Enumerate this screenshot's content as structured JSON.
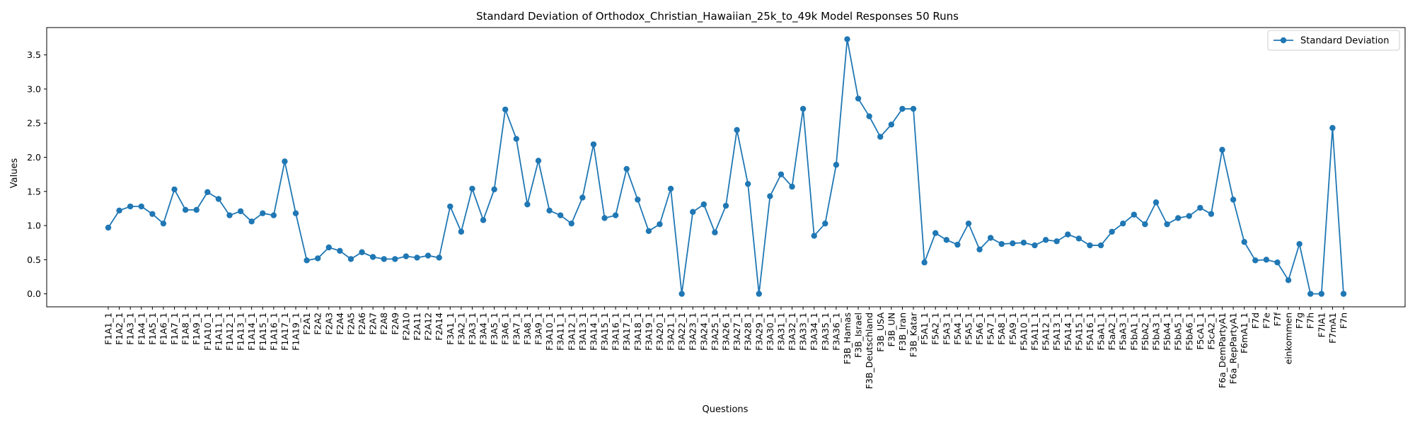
{
  "chart_data": {
    "type": "line",
    "title": "Standard Deviation of Orthodox_Christian_Hawaiian_25k_to_49k Model Responses 50 Runs",
    "xlabel": "Questions",
    "ylabel": "Values",
    "ylim": [
      -0.19,
      3.9
    ],
    "yticks": [
      0.0,
      0.5,
      1.0,
      1.5,
      2.0,
      2.5,
      3.0,
      3.5
    ],
    "ytick_labels": [
      "0.0",
      "0.5",
      "1.0",
      "1.5",
      "2.0",
      "2.5",
      "3.0",
      "3.5"
    ],
    "grid": false,
    "legend_position": "top-right",
    "categories": [
      "F1A1_1",
      "F1A2_1",
      "F1A3_1",
      "F1A4_1",
      "F1A5_1",
      "F1A6_1",
      "F1A7_1",
      "F1A8_1",
      "F1A9_1",
      "F1A10_1",
      "F1A11_1",
      "F1A12_1",
      "F1A13_1",
      "F1A14_1",
      "F1A15_1",
      "F1A16_1",
      "F1A17_1",
      "F1A19_1",
      "F2A1",
      "F2A2",
      "F2A3",
      "F2A4",
      "F2A5",
      "F2A6",
      "F2A7",
      "F2A8",
      "F2A9",
      "F2A10",
      "F2A11",
      "F2A12",
      "F2A14",
      "F3A1_1",
      "F3A2_1",
      "F3A3_1",
      "F3A4_1",
      "F3A5_1",
      "F3A6_1",
      "F3A7_1",
      "F3A8_1",
      "F3A9_1",
      "F3A10_1",
      "F3A11_1",
      "F3A12_1",
      "F3A13_1",
      "F3A14_1",
      "F3A15_1",
      "F3A16_1",
      "F3A17_1",
      "F3A18_1",
      "F3A19_1",
      "F3A20_1",
      "F3A21_1",
      "F3A22_1",
      "F3A23_1",
      "F3A24_1",
      "F3A25_1",
      "F3A26_1",
      "F3A27_1",
      "F3A28_1",
      "F3A29_1",
      "F3A30_1",
      "F3A31_1",
      "F3A32_1",
      "F3A33_1",
      "F3A34_1",
      "F3A35_1",
      "F3A36_1",
      "F3B_Hamas",
      "F3B_Israel",
      "F3B_Deutschland",
      "F3B_USA",
      "F3B_UN",
      "F3B_Iran",
      "F3B_Katar",
      "F5A1_1",
      "F5A2_1",
      "F5A3_1",
      "F5A4_1",
      "F5A5_1",
      "F5A6_1",
      "F5A7_1",
      "F5A8_1",
      "F5A9_1",
      "F5A10_1",
      "F5A11_1",
      "F5A12_1",
      "F5A13_1",
      "F5A14_1",
      "F5A15_1",
      "F5A16_1",
      "F5aA1_1",
      "F5aA2_1",
      "F5aA3_1",
      "F5bA1_1",
      "F5bA2_1",
      "F5bA3_1",
      "F5bA4_1",
      "F5bA5_1",
      "F5bA6_1",
      "F5cA1_1",
      "F5cA2_1",
      "F6a_DemPartyA1",
      "F6a_RepPartyA1",
      "F6mA1_1",
      "F7d",
      "F7e",
      "F7f",
      "einkommen",
      "F7g",
      "F7h",
      "F7IA1",
      "F7mA1",
      "F7n"
    ],
    "series": [
      {
        "name": "Standard Deviation",
        "color": "#1f77b4",
        "values": [
          0.97,
          1.22,
          1.28,
          1.28,
          1.17,
          1.03,
          1.53,
          1.23,
          1.23,
          1.49,
          1.39,
          1.15,
          1.21,
          1.06,
          1.18,
          1.15,
          1.94,
          1.18,
          0.49,
          0.52,
          0.68,
          0.63,
          0.51,
          0.61,
          0.54,
          0.51,
          0.51,
          0.55,
          0.53,
          0.56,
          0.53,
          1.28,
          0.91,
          1.54,
          1.08,
          1.53,
          2.7,
          2.27,
          1.31,
          1.95,
          1.22,
          1.15,
          1.03,
          1.41,
          2.19,
          1.11,
          1.15,
          1.83,
          1.38,
          0.92,
          1.02,
          1.54,
          0.0,
          1.2,
          1.31,
          0.9,
          1.29,
          2.4,
          1.61,
          0.0,
          1.43,
          1.75,
          1.57,
          2.71,
          0.85,
          1.03,
          1.89,
          3.73,
          2.86,
          2.6,
          2.3,
          2.48,
          2.71,
          2.71,
          0.46,
          0.89,
          0.79,
          0.72,
          1.03,
          0.65,
          0.82,
          0.73,
          0.74,
          0.75,
          0.71,
          0.79,
          0.77,
          0.87,
          0.81,
          0.71,
          0.71,
          0.91,
          1.03,
          1.16,
          1.02,
          1.34,
          1.02,
          1.11,
          1.14,
          1.26,
          1.17,
          2.11,
          1.38,
          0.76,
          0.49,
          0.5,
          0.46,
          0.2,
          0.73,
          0.0,
          0.0,
          2.43,
          0.0
        ]
      }
    ]
  }
}
